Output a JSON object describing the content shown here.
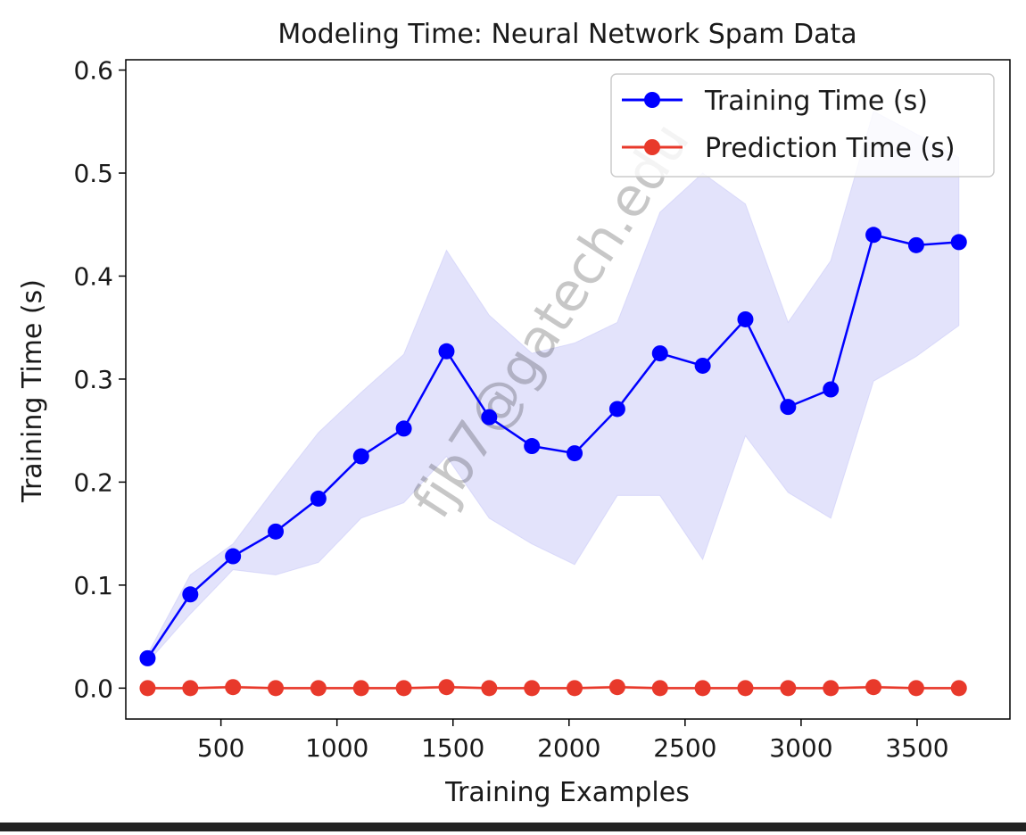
{
  "chart_data": {
    "type": "line",
    "title": "Modeling Time: Neural Network Spam Data",
    "xlabel": "Training Examples",
    "ylabel": "Training Time (s)",
    "xlim": [
      90,
      3900
    ],
    "ylim": [
      -0.03,
      0.61
    ],
    "xticks": [
      500,
      1000,
      1500,
      2000,
      2500,
      3000,
      3500
    ],
    "yticks": [
      0.0,
      0.1,
      0.2,
      0.3,
      0.4,
      0.5,
      0.6
    ],
    "xtick_labels": [
      "500",
      "1000",
      "1500",
      "2000",
      "2500",
      "3000",
      "3500"
    ],
    "ytick_labels": [
      "0.0",
      "0.1",
      "0.2",
      "0.3",
      "0.4",
      "0.5",
      "0.6"
    ],
    "grid": false,
    "legend_position": "top-right",
    "x": [
      184,
      368,
      552,
      736,
      920,
      1104,
      1288,
      1472,
      1656,
      1840,
      2024,
      2208,
      2392,
      2576,
      2760,
      2944,
      3128,
      3312,
      3496,
      3680
    ],
    "series": [
      {
        "name": "Training Time (s)",
        "color": "#0000ff",
        "band_color": "#ccccf8",
        "values": [
          0.029,
          0.091,
          0.128,
          0.152,
          0.184,
          0.225,
          0.252,
          0.327,
          0.263,
          0.235,
          0.228,
          0.271,
          0.325,
          0.313,
          0.358,
          0.273,
          0.29,
          0.44,
          0.43,
          0.433
        ],
        "lower": [
          0.025,
          0.072,
          0.115,
          0.11,
          0.122,
          0.165,
          0.18,
          0.225,
          0.165,
          0.14,
          0.12,
          0.187,
          0.187,
          0.125,
          0.245,
          0.19,
          0.165,
          0.298,
          0.322,
          0.352
        ],
        "upper": [
          0.033,
          0.11,
          0.14,
          0.195,
          0.248,
          0.287,
          0.324,
          0.425,
          0.362,
          0.325,
          0.335,
          0.355,
          0.462,
          0.5,
          0.47,
          0.355,
          0.415,
          0.56,
          0.538,
          0.515
        ]
      },
      {
        "name": "Prediction Time (s)",
        "color": "#e8392b",
        "band_color": "#f5b5ae",
        "values": [
          0.0,
          0.0,
          0.001,
          0.0,
          0.0,
          0.0,
          0.0,
          0.001,
          0.0,
          0.0,
          0.0,
          0.001,
          0.0,
          0.0,
          0.0,
          0.0,
          0.0,
          0.001,
          0.0,
          0.0
        ],
        "lower": [
          -0.001,
          -0.001,
          0.0,
          -0.001,
          -0.001,
          -0.001,
          -0.001,
          0.0,
          -0.001,
          -0.001,
          -0.001,
          0.0,
          -0.001,
          -0.001,
          -0.001,
          -0.001,
          -0.001,
          0.0,
          -0.001,
          -0.001
        ],
        "upper": [
          0.001,
          0.001,
          0.002,
          0.001,
          0.001,
          0.001,
          0.001,
          0.002,
          0.001,
          0.001,
          0.001,
          0.002,
          0.001,
          0.001,
          0.001,
          0.001,
          0.001,
          0.002,
          0.001,
          0.001
        ]
      }
    ],
    "watermark": "fjb7@gatech.edu"
  }
}
